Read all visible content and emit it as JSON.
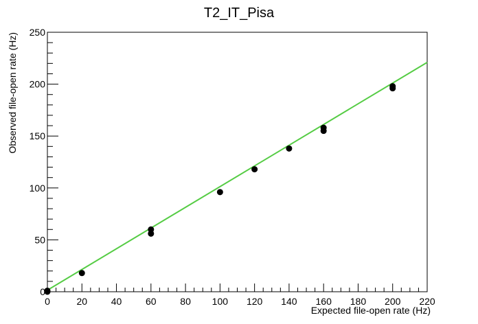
{
  "chart_data": {
    "type": "scatter",
    "title": "T2_IT_Pisa",
    "xlabel": "Expected file-open rate (Hz)",
    "ylabel": "Observed file-open rate (Hz)",
    "xlim": [
      0,
      220
    ],
    "ylim": [
      0,
      250
    ],
    "x_ticks": [
      0,
      20,
      40,
      60,
      80,
      100,
      120,
      140,
      160,
      180,
      200,
      220
    ],
    "y_ticks": [
      0,
      50,
      100,
      150,
      200,
      250
    ],
    "grid": false,
    "legend": "none",
    "series": [
      {
        "kind": "points",
        "color": "#000000",
        "points": [
          [
            0,
            0
          ],
          [
            0,
            1
          ],
          [
            20,
            18
          ],
          [
            60,
            56
          ],
          [
            60,
            60
          ],
          [
            100,
            96
          ],
          [
            120,
            118
          ],
          [
            140,
            138
          ],
          [
            160,
            155
          ],
          [
            160,
            158
          ],
          [
            200,
            196
          ],
          [
            200,
            198
          ]
        ]
      },
      {
        "kind": "fit-line",
        "color": "#55cc44",
        "points": [
          [
            0,
            1.5
          ],
          [
            220,
            221
          ]
        ]
      }
    ]
  }
}
